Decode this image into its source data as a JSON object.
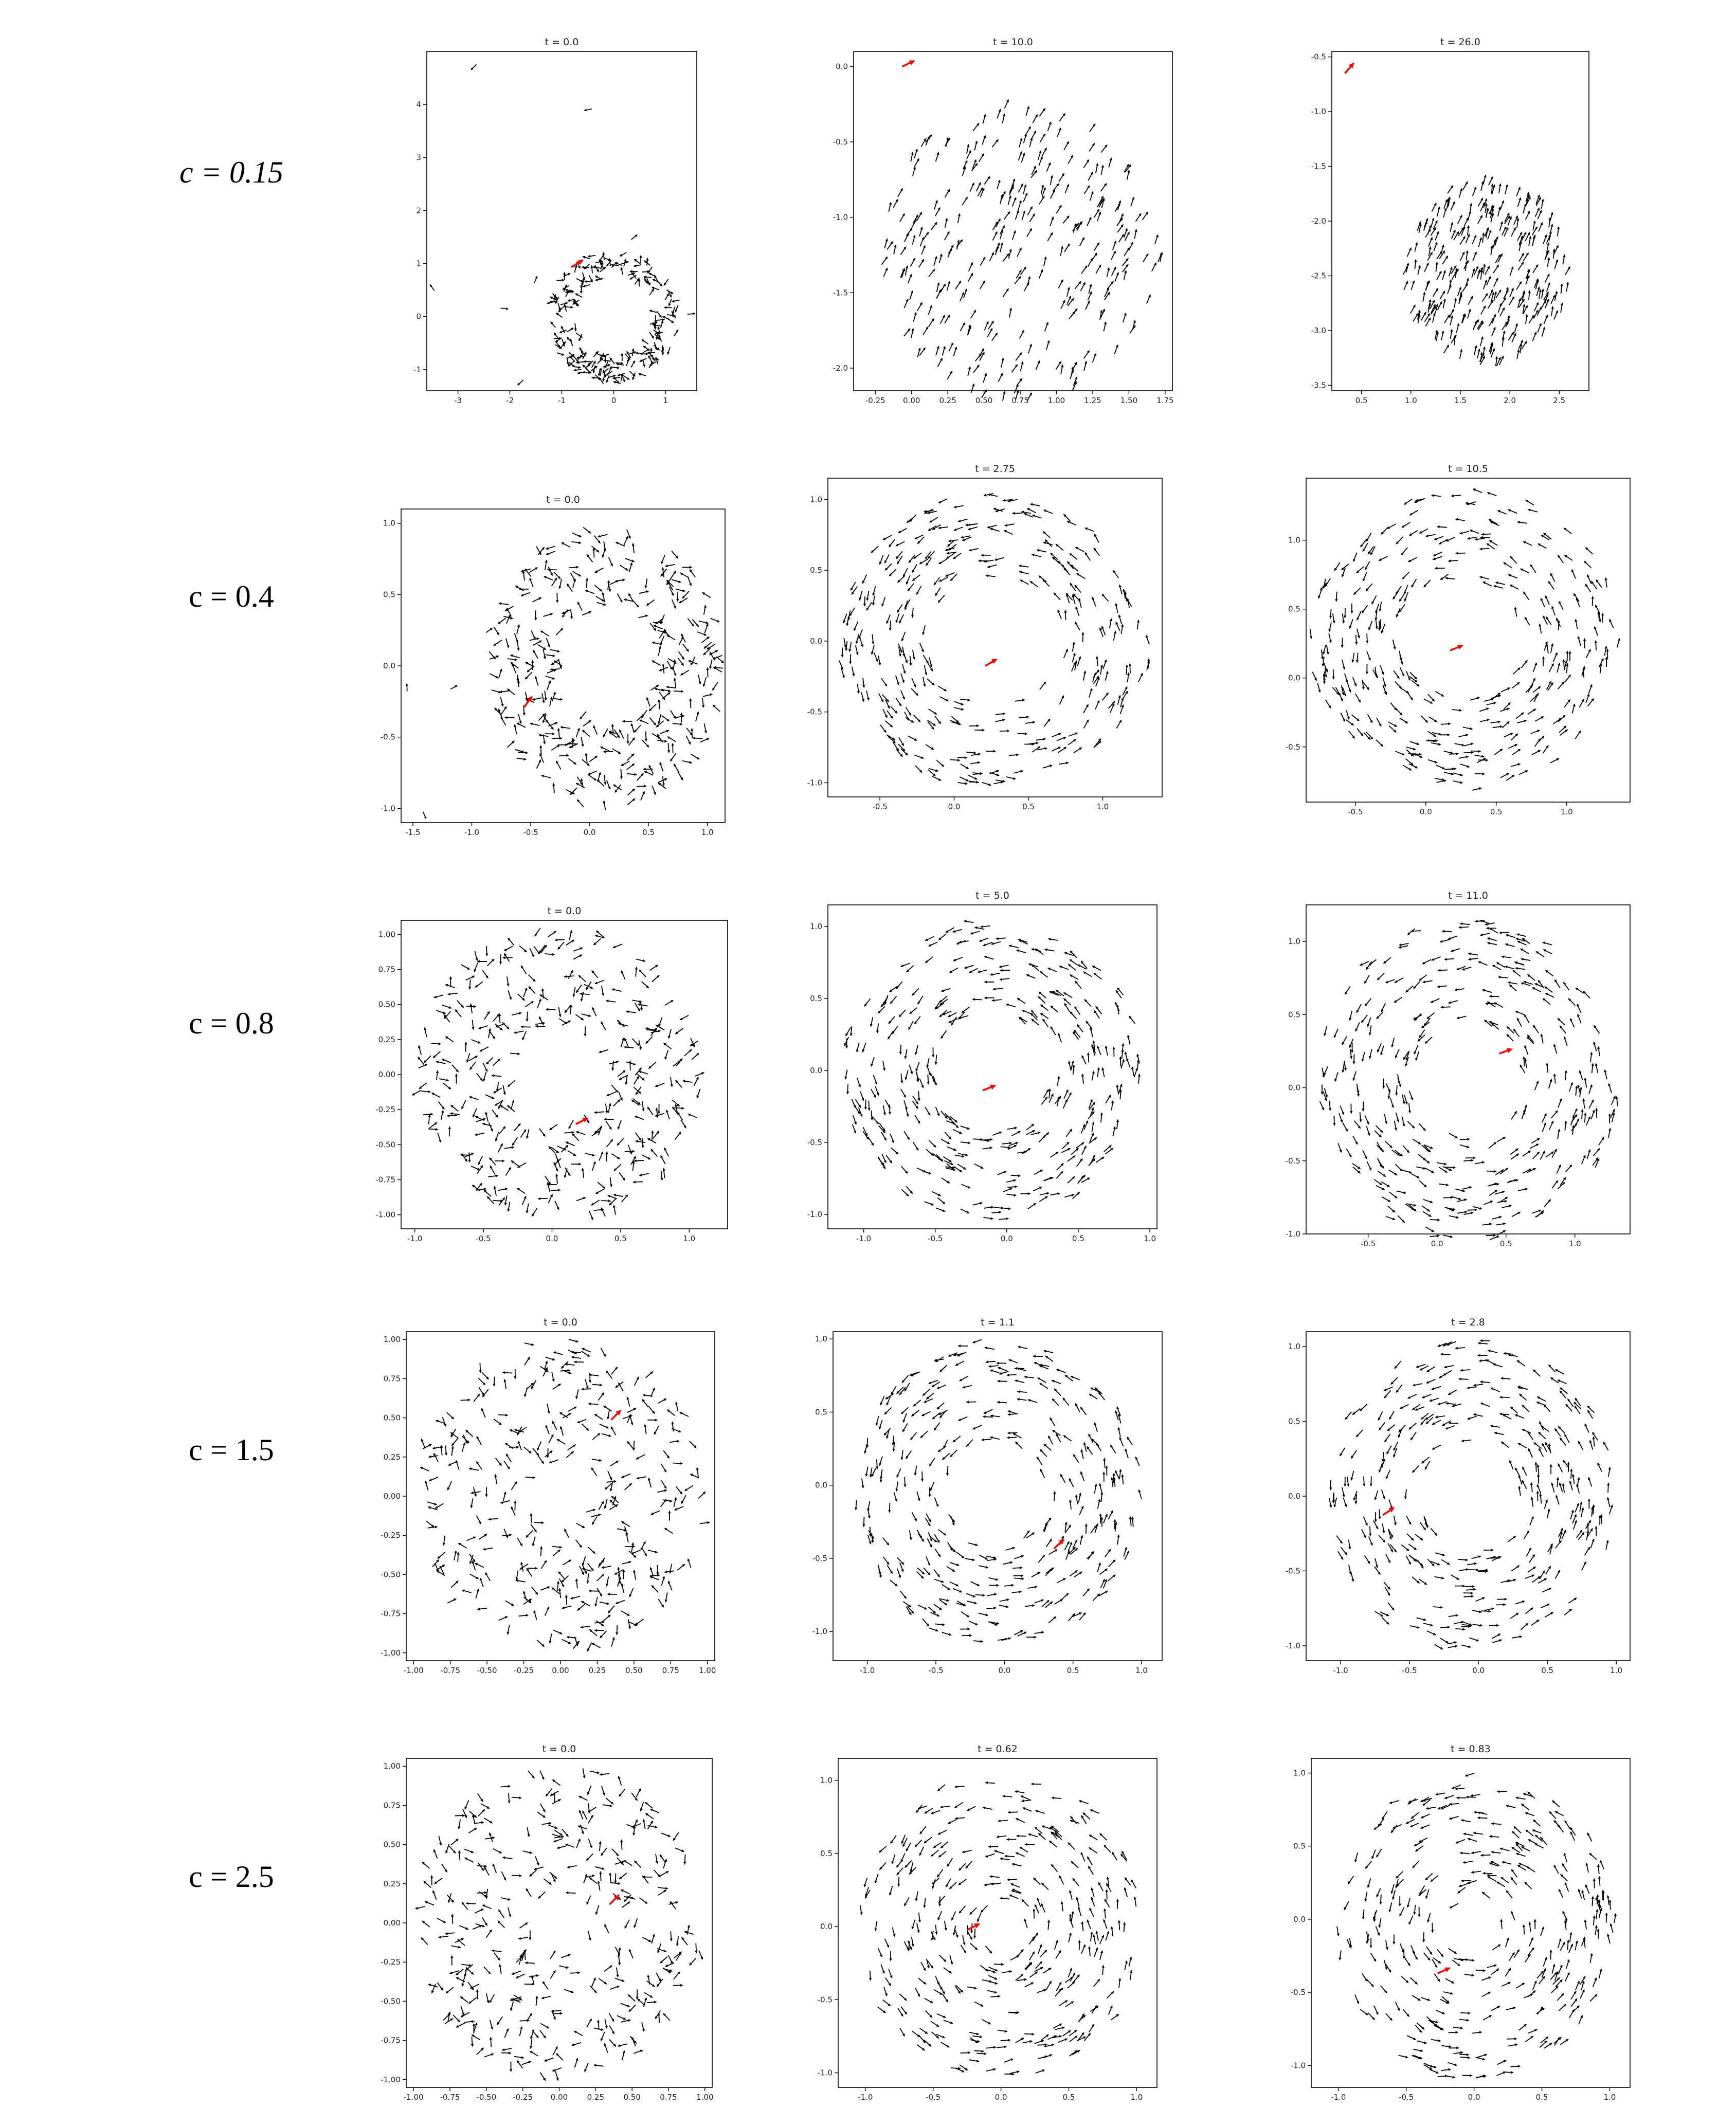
{
  "chart_data": [
    {
      "type": "scatter",
      "row_label": "c = 0.15",
      "italic": true,
      "panels": [
        {
          "title": "t = 0.0",
          "xlim": [
            -3.6,
            1.6
          ],
          "ylim": [
            -1.4,
            5.0
          ],
          "xticks": [
            "-3",
            "-2",
            "-1",
            "0",
            "1"
          ],
          "yticks": [
            "-1",
            "0",
            "1",
            "2",
            "3",
            "4"
          ],
          "swarm": {
            "shape": "ring",
            "cx": 0,
            "cy": 0,
            "r_inner": 0.75,
            "r_outer": 1.25,
            "dir": "random",
            "n": 220
          },
          "stray": [
            [
              -2.7,
              4.7
            ],
            [
              -0.5,
              3.9
            ],
            [
              -3.5,
              0.55
            ],
            [
              -2.1,
              0.15
            ],
            [
              -1.8,
              -1.25
            ],
            [
              1.5,
              0.05
            ],
            [
              0.4,
              1.5
            ],
            [
              -1.5,
              0.7
            ]
          ],
          "marked": [
            -0.7,
            1.0
          ]
        },
        {
          "title": "t = 10.0",
          "xlim": [
            -0.4,
            1.8
          ],
          "ylim": [
            -2.15,
            0.1
          ],
          "xticks": [
            "-0.25",
            "0.00",
            "0.25",
            "0.50",
            "0.75",
            "1.00",
            "1.25",
            "1.50",
            "1.75"
          ],
          "yticks": [
            "-2.0",
            "-1.5",
            "-1.0",
            "-0.5",
            "0.0"
          ],
          "swarm": {
            "shape": "disk",
            "cx": 0.75,
            "cy": -1.22,
            "r_inner": 0,
            "r_outer": 0.98,
            "dir": "aligned",
            "angle": 65,
            "n": 300
          },
          "stray": [],
          "marked": [
            -0.02,
            0.02
          ]
        },
        {
          "title": "t = 26.0",
          "xlim": [
            0.2,
            2.8
          ],
          "ylim": [
            -3.55,
            -0.45
          ],
          "xticks": [
            "0.5",
            "1.0",
            "1.5",
            "2.0",
            "2.5"
          ],
          "yticks": [
            "-3.5",
            "-3.0",
            "-2.5",
            "-2.0",
            "-1.5",
            "-1.0",
            "-0.5"
          ],
          "swarm": {
            "shape": "disk",
            "cx": 1.75,
            "cy": -2.45,
            "r_inner": 0,
            "r_outer": 0.85,
            "dir": "aligned",
            "angle": 70,
            "n": 290
          },
          "stray": [],
          "marked": [
            0.38,
            -0.6
          ]
        }
      ]
    },
    {
      "type": "scatter",
      "row_label": "c = 0.4",
      "italic": false,
      "panels": [
        {
          "title": "t = 0.0",
          "xlim": [
            -1.6,
            1.15
          ],
          "ylim": [
            -1.1,
            1.1
          ],
          "xticks": [
            "-1.5",
            "-1.0",
            "-0.5",
            "0.0",
            "0.5",
            "1.0"
          ],
          "yticks": [
            "-1.0",
            "-0.5",
            "0.0",
            "0.5",
            "1.0"
          ],
          "swarm": {
            "shape": "ring",
            "cx": 0.15,
            "cy": 0.0,
            "r_inner": 0.4,
            "r_outer": 1.0,
            "dir": "random",
            "n": 340
          },
          "stray": [
            [
              -1.55,
              -0.15
            ],
            [
              -1.4,
              -1.05
            ],
            [
              -1.15,
              -0.15
            ],
            [
              -0.85,
              0.25
            ]
          ],
          "marked": [
            -0.52,
            -0.25
          ]
        },
        {
          "title": "t = 2.75",
          "xlim": [
            -0.85,
            1.4
          ],
          "ylim": [
            -1.1,
            1.15
          ],
          "xticks": [
            "-0.5",
            "0.0",
            "0.5",
            "1.0"
          ],
          "yticks": [
            "-1.0",
            "-0.5",
            "0.0",
            "0.5",
            "1.0"
          ],
          "swarm": {
            "shape": "ring",
            "cx": 0.27,
            "cy": 0.0,
            "r_inner": 0.45,
            "r_outer": 1.05,
            "dir": "swirl",
            "n": 330
          },
          "stray": [],
          "marked": [
            0.25,
            -0.15
          ]
        },
        {
          "title": "t = 10.5",
          "xlim": [
            -0.85,
            1.45
          ],
          "ylim": [
            -0.9,
            1.45
          ],
          "xticks": [
            "-0.5",
            "0.0",
            "0.5",
            "1.0"
          ],
          "yticks": [
            "-0.5",
            "0.0",
            "0.5",
            "1.0"
          ],
          "swarm": {
            "shape": "ring",
            "cx": 0.27,
            "cy": 0.28,
            "r_inner": 0.42,
            "r_outer": 1.1,
            "dir": "swirl",
            "n": 340
          },
          "stray": [],
          "marked": [
            0.22,
            0.22
          ]
        }
      ]
    },
    {
      "type": "scatter",
      "row_label": "c = 0.8",
      "italic": false,
      "panels": [
        {
          "title": "t = 0.0",
          "xlim": [
            -1.1,
            1.28
          ],
          "ylim": [
            -1.1,
            1.1
          ],
          "xticks": [
            "-1.0",
            "-0.5",
            "0.0",
            "0.5",
            "1.0"
          ],
          "yticks": [
            "-1.00",
            "-0.75",
            "-0.50",
            "-0.25",
            "0.00",
            "0.25",
            "0.50",
            "0.75",
            "1.00"
          ],
          "swarm": {
            "shape": "ring",
            "cx": 0.05,
            "cy": 0.0,
            "r_inner": 0.35,
            "r_outer": 1.05,
            "dir": "random",
            "n": 360
          },
          "stray": [],
          "marked": [
            0.22,
            -0.33
          ]
        },
        {
          "title": "t = 5.0",
          "xlim": [
            -1.25,
            1.05
          ],
          "ylim": [
            -1.1,
            1.15
          ],
          "xticks": [
            "-1.0",
            "-0.5",
            "0.0",
            "0.5",
            "1.0"
          ],
          "yticks": [
            "-1.0",
            "-0.5",
            "0.0",
            "0.5",
            "1.0"
          ],
          "swarm": {
            "shape": "ring",
            "cx": -0.1,
            "cy": 0.0,
            "r_inner": 0.4,
            "r_outer": 1.05,
            "dir": "swirl",
            "n": 350
          },
          "stray": [],
          "marked": [
            -0.12,
            -0.12
          ]
        },
        {
          "title": "t = 11.0",
          "xlim": [
            -0.95,
            1.4
          ],
          "ylim": [
            -1.0,
            1.25
          ],
          "xticks": [
            "-0.5",
            "0.0",
            "0.5",
            "1.0"
          ],
          "yticks": [
            "-1.0",
            "-0.5",
            "0.0",
            "0.5",
            "1.0"
          ],
          "swarm": {
            "shape": "ring",
            "cx": 0.22,
            "cy": 0.05,
            "r_inner": 0.38,
            "r_outer": 1.1,
            "dir": "swirl",
            "n": 360
          },
          "stray": [],
          "marked": [
            0.5,
            0.25
          ]
        }
      ]
    },
    {
      "type": "scatter",
      "row_label": "c = 1.5",
      "italic": false,
      "panels": [
        {
          "title": "t = 0.0",
          "xlim": [
            -1.05,
            1.05
          ],
          "ylim": [
            -1.05,
            1.05
          ],
          "xticks": [
            "-1.00",
            "-0.75",
            "-0.50",
            "-0.25",
            "0.00",
            "0.25",
            "0.50",
            "0.75",
            "1.00"
          ],
          "yticks": [
            "-1.00",
            "-0.75",
            "-0.50",
            "-0.25",
            "0.00",
            "0.25",
            "0.50",
            "0.75",
            "1.00"
          ],
          "swarm": {
            "shape": "ring",
            "cx": 0.0,
            "cy": 0.0,
            "r_inner": 0.22,
            "r_outer": 1.0,
            "dir": "random",
            "n": 340
          },
          "stray": [],
          "marked": [
            0.38,
            0.52
          ]
        },
        {
          "title": "t = 1.1",
          "xlim": [
            -1.25,
            1.15
          ],
          "ylim": [
            -1.2,
            1.05
          ],
          "xticks": [
            "-1.0",
            "-0.5",
            "0.0",
            "0.5",
            "1.0"
          ],
          "yticks": [
            "-1.0",
            "-0.5",
            "0.0",
            "0.5",
            "1.0"
          ],
          "swarm": {
            "shape": "ring",
            "cx": -0.05,
            "cy": -0.05,
            "r_inner": 0.35,
            "r_outer": 1.05,
            "dir": "swirl",
            "n": 340
          },
          "stray": [],
          "marked": [
            0.4,
            -0.4
          ]
        },
        {
          "title": "t = 2.8",
          "xlim": [
            -1.25,
            1.1
          ],
          "ylim": [
            -1.1,
            1.1
          ],
          "xticks": [
            "-1.0",
            "-0.5",
            "0.0",
            "0.5",
            "1.0"
          ],
          "yticks": [
            "-1.0",
            "-0.5",
            "0.0",
            "0.5",
            "1.0"
          ],
          "swarm": {
            "shape": "ring",
            "cx": -0.05,
            "cy": 0.0,
            "r_inner": 0.35,
            "r_outer": 1.05,
            "dir": "swirl",
            "n": 340
          },
          "stray": [],
          "marked": [
            -0.65,
            -0.1
          ]
        }
      ]
    },
    {
      "type": "scatter",
      "row_label": "c = 2.5",
      "italic": false,
      "panels": [
        {
          "title": "t = 0.0",
          "xlim": [
            -1.05,
            1.05
          ],
          "ylim": [
            -1.05,
            1.05
          ],
          "xticks": [
            "-1.00",
            "-0.75",
            "-0.50",
            "-0.25",
            "0.00",
            "0.25",
            "0.50",
            "0.75",
            "1.00"
          ],
          "yticks": [
            "-1.00",
            "-0.75",
            "-0.50",
            "-0.25",
            "0.00",
            "0.25",
            "0.50",
            "0.75",
            "1.00"
          ],
          "swarm": {
            "shape": "ring",
            "cx": 0.0,
            "cy": 0.0,
            "r_inner": 0.2,
            "r_outer": 1.0,
            "dir": "random",
            "n": 340
          },
          "stray": [],
          "marked": [
            0.38,
            0.15
          ]
        },
        {
          "title": "t = 0.62",
          "xlim": [
            -1.2,
            1.15
          ],
          "ylim": [
            -1.1,
            1.15
          ],
          "xticks": [
            "-1.0",
            "-0.5",
            "0.0",
            "0.5",
            "1.0"
          ],
          "yticks": [
            "-1.0",
            "-0.5",
            "0.0",
            "0.5",
            "1.0"
          ],
          "swarm": {
            "shape": "ring",
            "cx": 0.0,
            "cy": 0.0,
            "r_inner": 0.15,
            "r_outer": 1.05,
            "dir": "swirl",
            "n": 340
          },
          "stray": [],
          "marked": [
            -0.2,
            0.0
          ]
        },
        {
          "title": "t = 0.83",
          "xlim": [
            -1.2,
            1.15
          ],
          "ylim": [
            -1.15,
            1.1
          ],
          "xticks": [
            "-1.0",
            "-0.5",
            "0.0",
            "0.5",
            "1.0"
          ],
          "yticks": [
            "-1.0",
            "-0.5",
            "0.0",
            "0.5",
            "1.0"
          ],
          "swarm": {
            "shape": "ring",
            "cx": 0.0,
            "cy": -0.05,
            "r_inner": 0.2,
            "r_outer": 1.05,
            "dir": "swirl",
            "n": 340
          },
          "stray": [],
          "marked": [
            -0.22,
            -0.35
          ]
        }
      ]
    }
  ]
}
